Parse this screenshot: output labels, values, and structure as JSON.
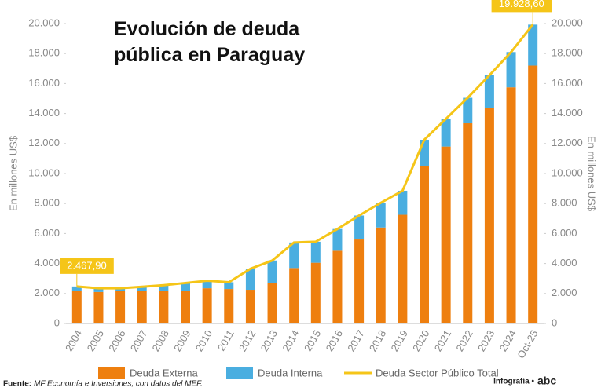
{
  "chart_data": {
    "type": "bar-line",
    "title_lines": [
      "Evolución de deuda",
      "pública en Paraguay"
    ],
    "y_label": "En millones US$",
    "y2_label": "En millones US$",
    "categories": [
      "2004",
      "2005",
      "2006",
      "2007",
      "2008",
      "2009",
      "2010",
      "2011",
      "2012",
      "2013",
      "2014",
      "2015",
      "2016",
      "2017",
      "2018",
      "2019",
      "2020",
      "2021",
      "2022",
      "2023",
      "2024",
      "Oct-25"
    ],
    "series": [
      {
        "name": "Deuda Externa",
        "color": "#ee7f0f",
        "values": [
          2200,
          2100,
          2150,
          2150,
          2200,
          2200,
          2350,
          2300,
          2250,
          2700,
          3700,
          4050,
          4850,
          5600,
          6400,
          7250,
          10500,
          11800,
          13350,
          14350,
          15750,
          17200
        ]
      },
      {
        "name": "Deuda Interna",
        "color": "#4aaee0",
        "values": [
          268,
          250,
          200,
          300,
          350,
          500,
          500,
          450,
          1400,
          1500,
          1700,
          1400,
          1450,
          1600,
          1650,
          1600,
          1750,
          1850,
          1700,
          2200,
          2350,
          2728.6
        ]
      },
      {
        "name": "Deuda Sector Público Total",
        "color": "#f5c518",
        "line": true,
        "values": [
          2467.9,
          2350,
          2350,
          2450,
          2550,
          2700,
          2850,
          2750,
          3650,
          4200,
          5400,
          5450,
          6300,
          7200,
          8050,
          8850,
          12250,
          13650,
          15050,
          16550,
          18100,
          19928.6
        ],
        "value_labels": [
          "2.467,90",
          null,
          null,
          null,
          null,
          null,
          null,
          null,
          null,
          null,
          null,
          null,
          null,
          null,
          null,
          null,
          null,
          null,
          null,
          null,
          null,
          "19.928,60"
        ]
      }
    ],
    "ylim": [
      0,
      20000
    ],
    "yticks": [
      0,
      {
        "value": 2000,
        "label": "2.000"
      },
      {
        "value": 4000,
        "label": "4.000"
      },
      {
        "value": 6000,
        "label": "6.000"
      },
      {
        "value": 8000,
        "label": "8.000"
      },
      {
        "value": 10000,
        "label": "10.000"
      },
      {
        "value": 12000,
        "label": "12.000"
      },
      {
        "value": 14000,
        "label": "14.000"
      },
      {
        "value": 16000,
        "label": "16.000"
      },
      {
        "value": 18000,
        "label": "18.000"
      },
      {
        "value": 20000,
        "label": "20.000"
      }
    ],
    "y2lim": [
      0,
      20000
    ],
    "y2ticks": [
      0,
      {
        "value": 2000,
        "label": "2.000"
      },
      {
        "value": 4000,
        "label": "4.000"
      },
      {
        "value": 6000,
        "label": "6.000"
      },
      {
        "value": 8000,
        "label": "8.000"
      },
      {
        "value": 10000,
        "label": "10.000"
      },
      {
        "value": 12000,
        "label": "12.000"
      },
      {
        "value": 14000,
        "label": "14.000"
      },
      {
        "value": 16000,
        "label": "16.000"
      },
      {
        "value": 18000,
        "label": "18.000"
      },
      {
        "value": 20000,
        "label": "20.000"
      }
    ],
    "source_label": "Fuente:",
    "source": "MF Economía e Inversiones, con datos del MEF.",
    "credit": "Infografía •",
    "brand": "abc"
  }
}
